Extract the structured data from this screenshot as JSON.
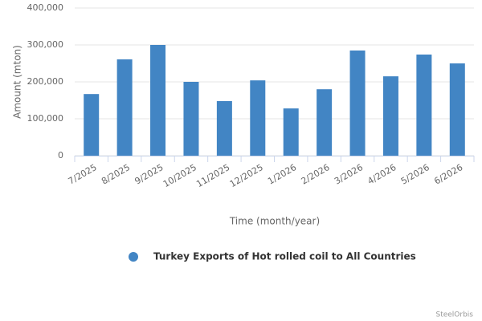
{
  "chart_data": {
    "type": "bar",
    "categories": [
      "7/2025",
      "8/2025",
      "9/2025",
      "10/2025",
      "11/2025",
      "12/2025",
      "1/2026",
      "2/2026",
      "3/2026",
      "4/2026",
      "5/2026",
      "6/2026"
    ],
    "series": [
      {
        "name": "Turkey Exports of Hot rolled coil to All Countries",
        "color": "#4285c4",
        "values": [
          167000,
          261000,
          300000,
          200000,
          148000,
          204000,
          128000,
          180000,
          285000,
          215000,
          274000,
          250000
        ]
      }
    ],
    "x_label": "Time (month/year)",
    "y_label": "Amount (mton)",
    "ylim": [
      0,
      400000
    ],
    "yticks": [
      0,
      {
        "value": 100000,
        "label": "100,000"
      },
      {
        "value": 200000,
        "label": "200,000"
      },
      {
        "value": 300000,
        "label": "300,000"
      },
      {
        "value": 400000,
        "label": "400,000"
      }
    ],
    "grid": true,
    "legend": "bottom",
    "credit": "SteelOrbis"
  }
}
